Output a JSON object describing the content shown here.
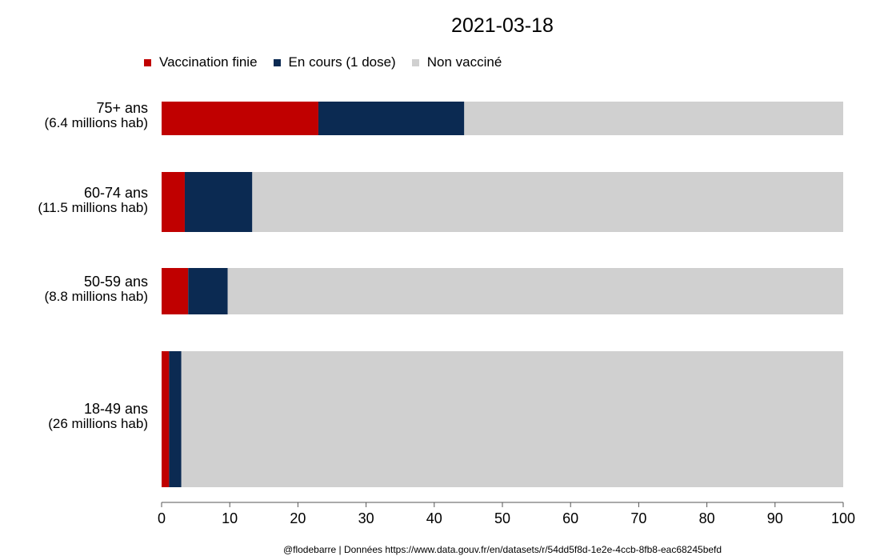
{
  "chart_data": {
    "type": "bar",
    "orientation": "horizontal",
    "stacked": true,
    "title": "2021-03-18",
    "categories": [
      {
        "age": "75+ ans",
        "pop": "(6.4 millions hab)"
      },
      {
        "age": "60-74 ans",
        "pop": "(11.5 millions hab)"
      },
      {
        "age": "50-59 ans",
        "pop": "(8.8 millions hab)"
      },
      {
        "age": "18-49 ans",
        "pop": "(26 millions hab)"
      }
    ],
    "series": [
      {
        "name": "Vaccination finie",
        "color": "#c00000",
        "values": [
          23.0,
          3.4,
          3.9,
          1.1
        ]
      },
      {
        "name": "En cours (1 dose)",
        "color": "#0b2a52",
        "values": [
          21.4,
          9.9,
          5.8,
          1.8
        ]
      },
      {
        "name": "Non vacciné",
        "color": "#d0d0d0",
        "values": [
          55.6,
          86.7,
          90.3,
          97.1
        ]
      }
    ],
    "xlim": [
      0,
      100
    ],
    "xticks": [
      0,
      10,
      20,
      30,
      40,
      50,
      60,
      70,
      80,
      90,
      100
    ],
    "bar_thickness_by": "population_millions",
    "population_millions": [
      6.4,
      11.5,
      8.8,
      26
    ],
    "legend_position": "top",
    "caption": "@flodebarre | Données https://www.data.gouv.fr/en/datasets/r/54dd5f8d-1e2e-4ccb-8fb8-eac68245befd"
  }
}
